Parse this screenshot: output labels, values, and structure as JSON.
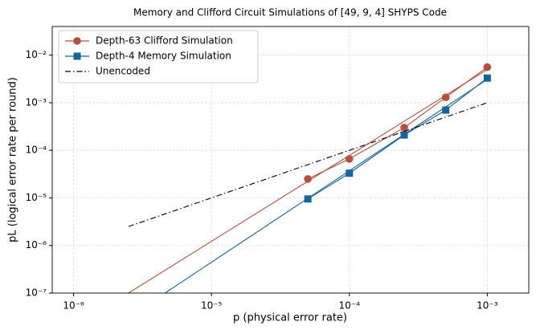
{
  "chart_data": {
    "type": "line",
    "title": "Memory and Clifford Circuit Simulations of [49, 9, 4] SHYPS Code",
    "x_label": "p (physical error rate)",
    "y_label": "pL (logical error rate per round)",
    "log_x": true,
    "log_y": true,
    "grid": true,
    "legend": "upper left",
    "xlim": [
      7e-07,
      0.002
    ],
    "ylim": [
      1e-07,
      0.04
    ],
    "xticks": [
      {
        "value": 1e-06,
        "label": "10⁻⁶"
      },
      {
        "value": 1e-05,
        "label": "10⁻⁵"
      },
      {
        "value": 0.0001,
        "label": "10⁻⁴"
      },
      {
        "value": 0.001,
        "label": "10⁻³"
      }
    ],
    "yticks": [
      {
        "value": 1e-07,
        "label": "10⁻⁷"
      },
      {
        "value": 1e-06,
        "label": "10⁻⁶"
      },
      {
        "value": 1e-05,
        "label": "10⁻⁵"
      },
      {
        "value": 0.0001,
        "label": "10⁻⁴"
      },
      {
        "value": 0.001,
        "label": "10⁻³"
      },
      {
        "value": 0.01,
        "label": "10⁻²"
      }
    ],
    "series": [
      {
        "name": "Depth-63 Clifford Simulation",
        "color": "#b5503c",
        "marker": "circle",
        "x": [
          5e-05,
          0.0001,
          0.00025,
          0.0005,
          0.001
        ],
        "values": [
          2.5e-05,
          6.6e-05,
          0.0003,
          0.0013,
          0.0056
        ]
      },
      {
        "name": "Depth-4 Memory Simulation",
        "color": "#1565a0",
        "marker": "square",
        "x": [
          5e-05,
          0.0001,
          0.00025,
          0.0005,
          0.001
        ],
        "values": [
          9.5e-06,
          3.3e-05,
          0.00021,
          0.0007,
          0.0033
        ]
      },
      {
        "name": "Unencoded",
        "color": "#000000",
        "marker": "none",
        "dash": "dashdot",
        "x": [
          2.5e-06,
          0.001
        ],
        "values": [
          2.5e-06,
          0.001
        ]
      }
    ],
    "fit_lines": [
      {
        "color": "#b5503c",
        "x": [
          2.5e-06,
          0.001
        ],
        "values": [
          1e-07,
          0.005
        ]
      },
      {
        "color": "#1565a0",
        "x": [
          4.6e-06,
          0.001
        ],
        "values": [
          1e-07,
          0.0031
        ]
      }
    ]
  }
}
